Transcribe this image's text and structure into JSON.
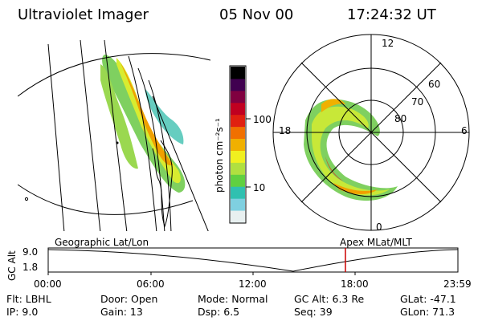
{
  "header": {
    "instrument": "Ultraviolet Imager",
    "date": "05 Nov 00",
    "time": "17:24:32 UT"
  },
  "left_panel": {
    "caption": "Geographic Lat/Lon"
  },
  "right_panel": {
    "caption": "Apex MLat/MLT",
    "mlt_labels": [
      "12",
      "18",
      "6",
      "0"
    ],
    "lat_labels": [
      "60",
      "70",
      "80"
    ]
  },
  "colorbar": {
    "unit_label": "photon cm⁻²s⁻¹",
    "ticks": [
      "100",
      "10"
    ],
    "colors": [
      "#e8f0f0",
      "#7fd0e0",
      "#30c0b0",
      "#60d040",
      "#b0e040",
      "#f0f020",
      "#f0b000",
      "#f07000",
      "#e02010",
      "#c00020",
      "#800040",
      "#400050",
      "#000000"
    ]
  },
  "altitude_plot": {
    "ylabel": "GC Alt",
    "ymax": "9.0",
    "ymin": "1.8",
    "xticks": [
      "00:00",
      "06:00",
      "12:00",
      "18:00",
      "23:59"
    ],
    "current_marker_color": "#cc0000"
  },
  "footer": {
    "flt": "Flt: LBHL",
    "ip": "IP:  9.0",
    "door": "Door: Open",
    "gain": "Gain: 13",
    "mode": "Mode: Normal",
    "dsp": "Dsp:     6.5",
    "gc_alt": "GC Alt: 6.3 Re",
    "seq": "Seq: 39",
    "glat": "GLat: -47.1",
    "glon": "GLon:  71.3"
  }
}
